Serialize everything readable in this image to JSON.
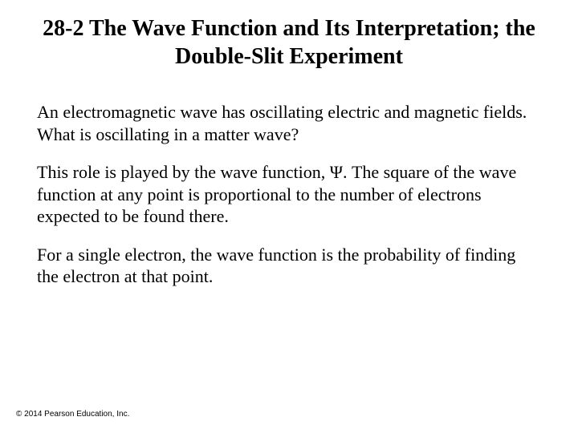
{
  "slide": {
    "title": "28-2 The Wave Function and Its Interpretation; the Double-Slit Experiment",
    "paragraphs": [
      "An electromagnetic wave has oscillating electric and magnetic fields. What is oscillating in a matter wave?",
      "This role is played by the wave function, Ψ. The square of the wave function at any point is proportional to the number of electrons expected to be found there.",
      "For a single electron, the wave function is the probability of finding the electron at that point."
    ],
    "copyright": "© 2014 Pearson Education, Inc."
  },
  "styling": {
    "background_color": "#ffffff",
    "text_color": "#000000",
    "title_fontsize": 28,
    "title_weight": "bold",
    "body_fontsize": 22,
    "copyright_fontsize": 10,
    "font_family": "Times New Roman"
  }
}
